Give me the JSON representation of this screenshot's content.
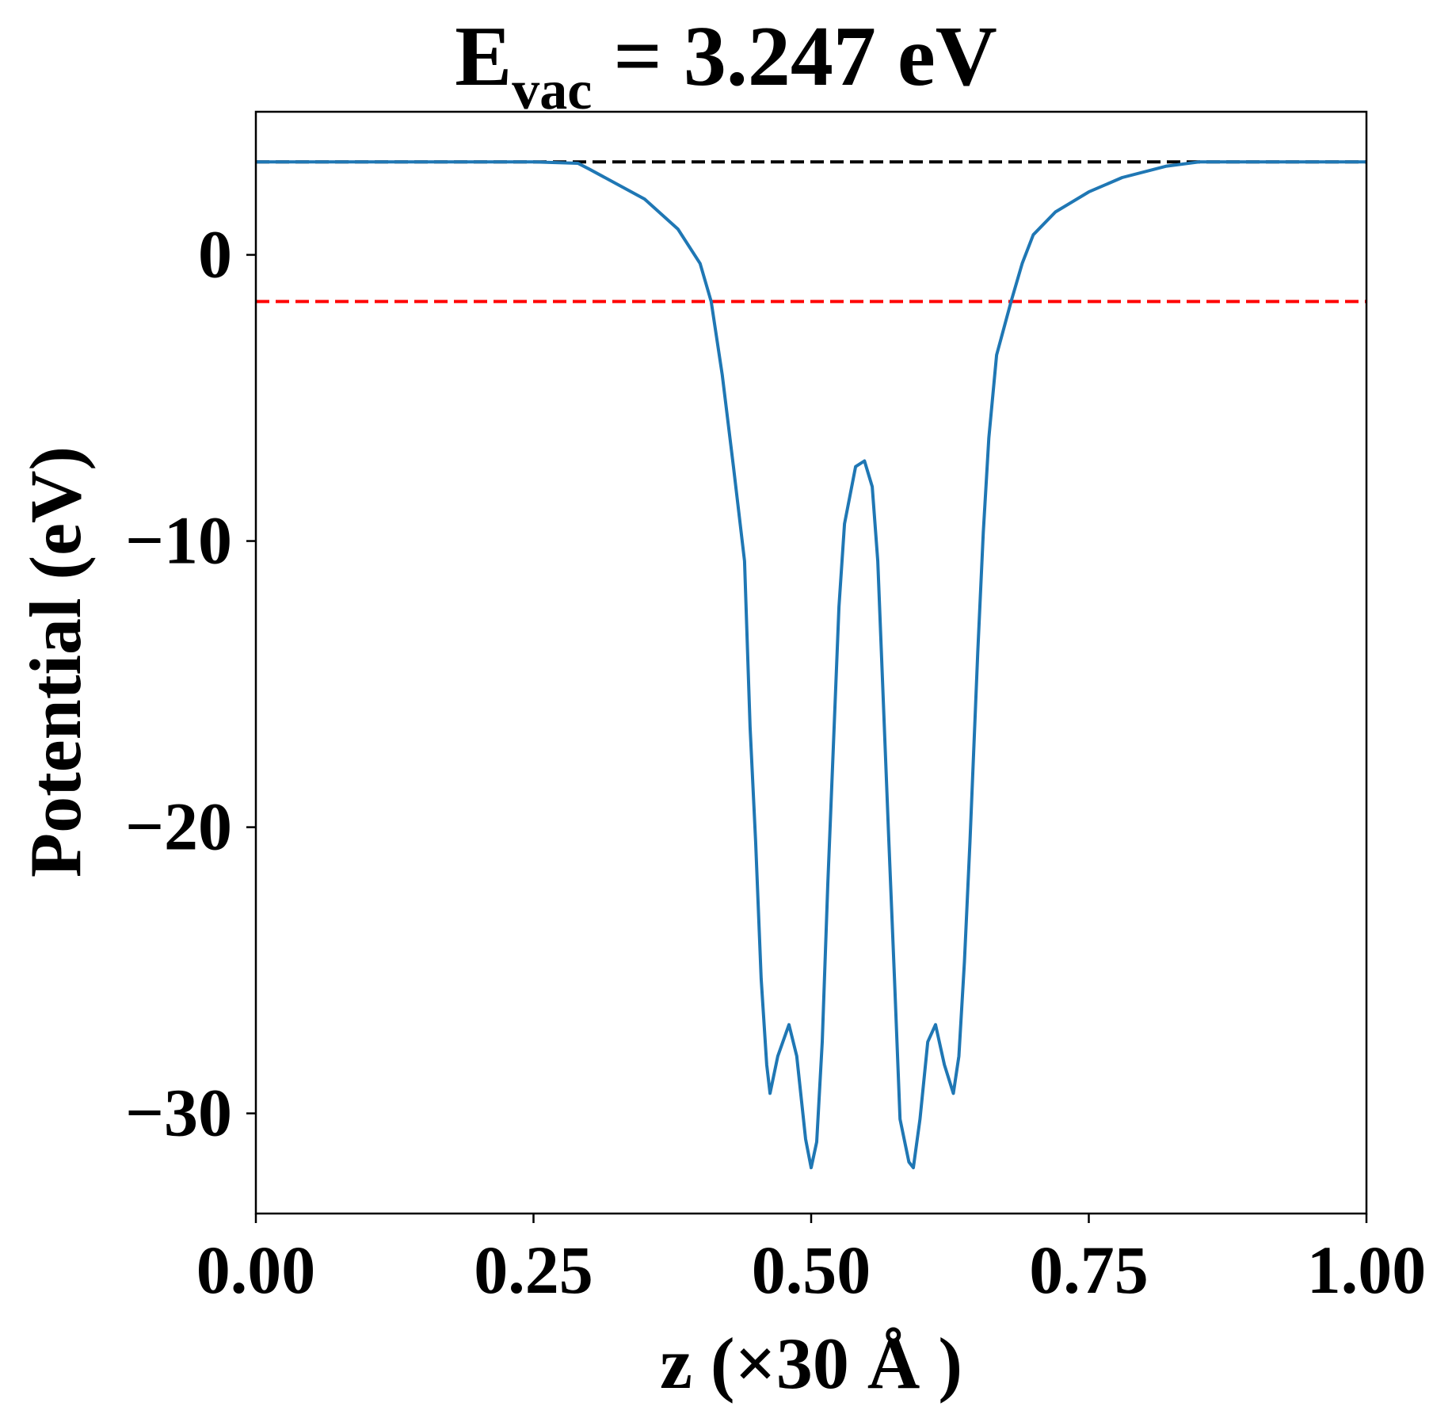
{
  "chart_data": {
    "type": "line",
    "title": {
      "main": "E",
      "sub": "vac",
      "rest": " = 3.247 eV"
    },
    "xlabel": "z (×30 Å )",
    "ylabel": "Potential (eV)",
    "xlim": [
      0,
      1
    ],
    "ylim": [
      -33.5,
      5.0
    ],
    "xticks": [
      0,
      0.25,
      0.5,
      0.75,
      1.0
    ],
    "xtick_labels": [
      "0.00",
      "0.25",
      "0.50",
      "0.75",
      "1.00"
    ],
    "yticks": [
      0,
      -10,
      -20,
      -30
    ],
    "ytick_labels": [
      "0",
      "−10",
      "−20",
      "−30"
    ],
    "grid": false,
    "hlines": [
      {
        "y": 3.247,
        "color": "#000000",
        "style": "dashed"
      },
      {
        "y": -1.63,
        "color": "#ff0000",
        "style": "dashed"
      }
    ],
    "series": [
      {
        "color": "#1f77b4",
        "x": [
          0,
          0.05,
          0.1,
          0.15,
          0.2,
          0.25,
          0.29,
          0.3,
          0.35,
          0.38,
          0.4,
          0.41,
          0.42,
          0.43,
          0.44,
          0.445,
          0.45,
          0.455,
          0.46,
          0.463,
          0.47,
          0.48,
          0.487,
          0.495,
          0.5,
          0.505,
          0.51,
          0.515,
          0.52,
          0.525,
          0.53,
          0.54,
          0.548,
          0.555,
          0.56,
          0.565,
          0.57,
          0.575,
          0.58,
          0.588,
          0.592,
          0.598,
          0.605,
          0.612,
          0.62,
          0.628,
          0.633,
          0.638,
          0.643,
          0.65,
          0.655,
          0.66,
          0.667,
          0.68,
          0.69,
          0.7,
          0.72,
          0.75,
          0.78,
          0.82,
          0.85,
          0.9,
          0.95,
          1.0
        ],
        "y": [
          3.25,
          3.25,
          3.25,
          3.25,
          3.25,
          3.25,
          3.2,
          3.0,
          1.95,
          0.9,
          -0.3,
          -1.63,
          -4.2,
          -7.4,
          -10.7,
          -16.5,
          -20.5,
          -25.3,
          -28.3,
          -29.3,
          -28.0,
          -26.9,
          -28.0,
          -30.9,
          -31.9,
          -31.0,
          -27.5,
          -22.0,
          -17.2,
          -12.3,
          -9.4,
          -7.4,
          -7.2,
          -8.1,
          -10.7,
          -15.6,
          -20.5,
          -25.3,
          -30.2,
          -31.7,
          -31.9,
          -30.2,
          -27.5,
          -26.9,
          -28.3,
          -29.3,
          -28.0,
          -24.7,
          -20.5,
          -13.9,
          -9.7,
          -6.4,
          -3.5,
          -1.63,
          -0.3,
          0.7,
          1.5,
          2.2,
          2.7,
          3.1,
          3.25,
          3.25,
          3.25,
          3.25
        ]
      }
    ]
  }
}
